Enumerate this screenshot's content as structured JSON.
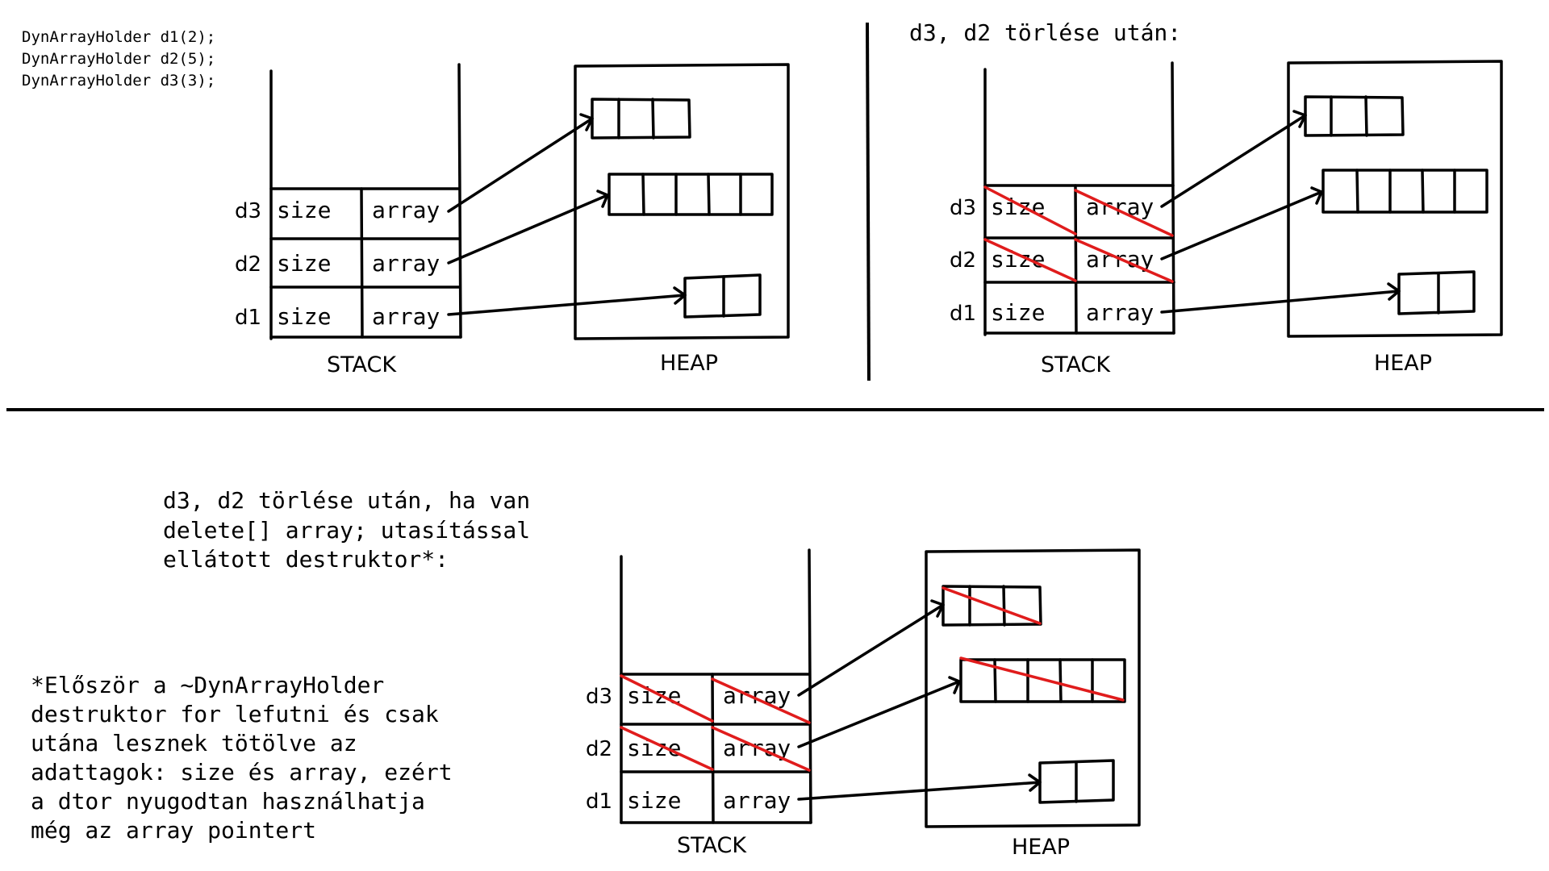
{
  "code_lines": [
    "DynArrayHolder d1(2);",
    "DynArrayHolder d2(5);",
    "DynArrayHolder d3(3);"
  ],
  "panel2_title": "d3, d2 törlése után:",
  "panel3_title_lines": [
    "d3, d2 törlése után, ha van",
    "delete[] array; utasítással",
    "ellátott destruktor*:"
  ],
  "footnote_lines": [
    "*Először a ~DynArrayHolder",
    "destruktor for lefutni és csak",
    "utána lesznek tötölve az",
    "adattagok: size és array, ezért",
    "a dtor nyugodtan használhatja",
    "még az array pointert"
  ],
  "stack_label": "STACK",
  "heap_label": "HEAP",
  "row_labels": [
    "d3",
    "d2",
    "d1"
  ],
  "field_size": "size",
  "field_array": "array",
  "heap_array_cells": [
    3,
    5,
    2
  ],
  "colors": {
    "ink": "#000000",
    "strike": "#e01c1c"
  }
}
